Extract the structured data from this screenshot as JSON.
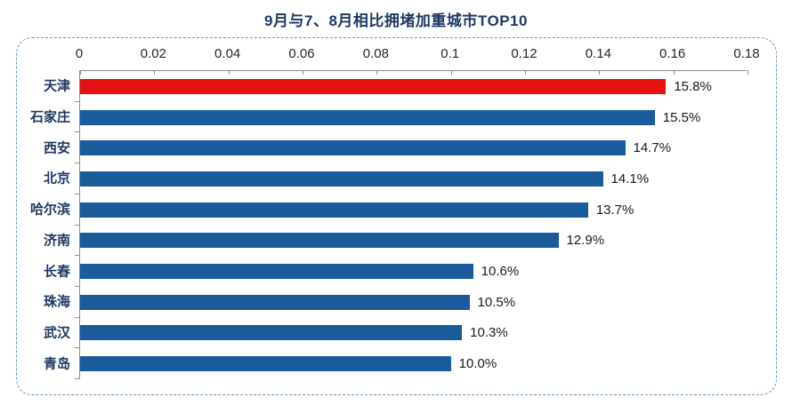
{
  "chart_data": {
    "type": "bar",
    "orientation": "horizontal",
    "title": "9月与7、8月相比拥堵加重城市TOP10",
    "categories": [
      "天津",
      "石家庄",
      "西安",
      "北京",
      "哈尔滨",
      "济南",
      "长春",
      "珠海",
      "武汉",
      "青岛"
    ],
    "values": [
      0.158,
      0.155,
      0.147,
      0.141,
      0.137,
      0.129,
      0.106,
      0.105,
      0.103,
      0.1
    ],
    "value_labels": [
      "15.8%",
      "15.5%",
      "14.7%",
      "14.1%",
      "13.7%",
      "12.9%",
      "10.6%",
      "10.5%",
      "10.3%",
      "10.0%"
    ],
    "x_ticks": [
      "0",
      "0.02",
      "0.04",
      "0.06",
      "0.08",
      "0.1",
      "0.12",
      "0.14",
      "0.16",
      "0.18"
    ],
    "x_min": 0,
    "x_max": 0.18,
    "grid": false,
    "legend": null,
    "highlight_index": 0,
    "colors": {
      "bar_highlight": "#e51212",
      "bar_default": "#1a5b9c",
      "title_text": "#1f3864",
      "category_text": "#1f3864",
      "value_text": "#1a1a1a",
      "axis_line": "#8f8f8f",
      "panel_border": "#6e96be"
    }
  }
}
